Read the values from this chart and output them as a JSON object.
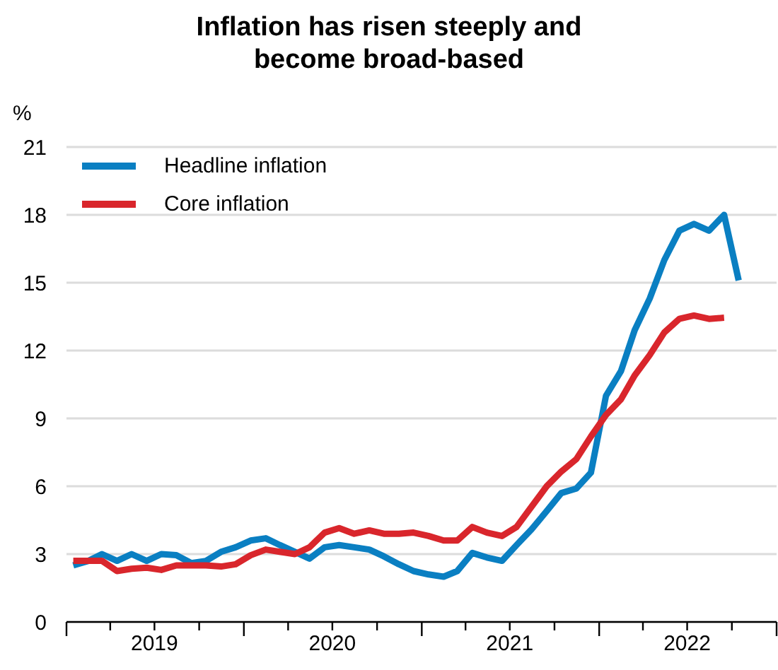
{
  "chart_data": {
    "type": "line",
    "title": "Inflation has risen steeply and become broad-based",
    "ylabel": "%",
    "x": [
      "2019-01-15",
      "2019-02-15",
      "2019-03-15",
      "2019-04-15",
      "2019-05-15",
      "2019-06-15",
      "2019-07-15",
      "2019-08-15",
      "2019-09-15",
      "2019-10-15",
      "2019-11-15",
      "2019-12-15",
      "2020-01-15",
      "2020-02-15",
      "2020-03-15",
      "2020-04-15",
      "2020-05-15",
      "2020-06-15",
      "2020-07-15",
      "2020-08-15",
      "2020-09-15",
      "2020-10-15",
      "2020-11-15",
      "2020-12-15",
      "2021-01-15",
      "2021-02-15",
      "2021-03-15",
      "2021-04-15",
      "2021-05-15",
      "2021-06-15",
      "2021-07-15",
      "2021-08-15",
      "2021-09-15",
      "2021-10-15",
      "2021-11-15",
      "2021-12-15",
      "2022-01-15",
      "2022-02-15",
      "2022-03-15",
      "2022-04-15",
      "2022-05-15",
      "2022-06-15",
      "2022-07-15",
      "2022-08-15",
      "2022-09-15",
      "2022-10-15"
    ],
    "series": [
      {
        "name": "Headline inflation",
        "color": "#0a7fc2",
        "values": [
          2.5,
          2.7,
          3.0,
          2.7,
          3.0,
          2.7,
          3.0,
          2.95,
          2.6,
          2.7,
          3.1,
          3.3,
          3.6,
          3.7,
          3.4,
          3.1,
          2.8,
          3.3,
          3.4,
          3.3,
          3.2,
          2.9,
          2.55,
          2.25,
          2.1,
          2.0,
          2.25,
          3.05,
          2.85,
          2.7,
          3.4,
          4.1,
          4.9,
          5.7,
          5.9,
          6.6,
          10.0,
          11.1,
          12.9,
          14.3,
          16.0,
          17.3,
          17.6,
          17.3,
          18.0,
          15.1
        ]
      },
      {
        "name": "Core inflation",
        "color": "#d9262c",
        "values": [
          2.7,
          2.7,
          2.7,
          2.25,
          2.35,
          2.4,
          2.3,
          2.5,
          2.5,
          2.5,
          2.45,
          2.55,
          2.95,
          3.2,
          3.1,
          3.0,
          3.3,
          3.95,
          4.15,
          3.9,
          4.05,
          3.9,
          3.9,
          3.95,
          3.8,
          3.6,
          3.6,
          4.2,
          3.95,
          3.8,
          4.2,
          5.1,
          6.0,
          6.65,
          7.2,
          8.2,
          9.15,
          9.85,
          10.9,
          11.8,
          12.8,
          13.4,
          13.55,
          13.4,
          13.45,
          null
        ]
      }
    ],
    "xlim": [
      "2019-01",
      "2023-01"
    ],
    "xticks": [
      {
        "value": "2019-01",
        "label": null
      },
      {
        "value": "2019-04",
        "label": null
      },
      {
        "value": "2019-07",
        "label": "2019"
      },
      {
        "value": "2019-10",
        "label": null
      },
      {
        "value": "2020-01",
        "label": null
      },
      {
        "value": "2020-04",
        "label": null
      },
      {
        "value": "2020-07",
        "label": "2020"
      },
      {
        "value": "2020-10",
        "label": null
      },
      {
        "value": "2021-01",
        "label": null
      },
      {
        "value": "2021-04",
        "label": null
      },
      {
        "value": "2021-07",
        "label": "2021"
      },
      {
        "value": "2021-10",
        "label": null
      },
      {
        "value": "2022-01",
        "label": null
      },
      {
        "value": "2022-04",
        "label": null
      },
      {
        "value": "2022-07",
        "label": "2022"
      },
      {
        "value": "2022-10",
        "label": null
      },
      {
        "value": "2023-01",
        "label": null
      }
    ],
    "ylim": [
      0,
      21
    ],
    "yticks": [
      0,
      3,
      6,
      9,
      12,
      15,
      18,
      21
    ],
    "grid": "y",
    "legend": "top left",
    "marker": "none",
    "line_style": "solid"
  }
}
